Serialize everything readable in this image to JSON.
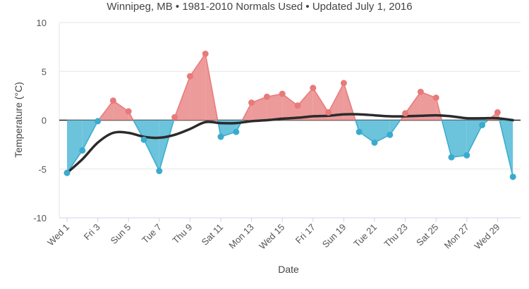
{
  "chart_data": {
    "type": "area",
    "subtitle": "Winnipeg, MB • 1981-2010 Normals Used • Updated July 1, 2016",
    "xlabel": "Date",
    "ylabel": "Temperature (°C)",
    "ylim": [
      -10,
      10
    ],
    "yticks": [
      "10",
      "5",
      "0",
      "-5",
      "-10"
    ],
    "ytick_values": [
      10,
      5,
      0,
      -5,
      -10
    ],
    "days": [
      1,
      2,
      3,
      4,
      5,
      6,
      7,
      8,
      9,
      10,
      11,
      12,
      13,
      14,
      15,
      16,
      17,
      18,
      19,
      20,
      21,
      22,
      23,
      24,
      25,
      26,
      27,
      28,
      29,
      30
    ],
    "xtick_days": [
      1,
      3,
      5,
      7,
      9,
      11,
      13,
      15,
      17,
      19,
      21,
      23,
      25,
      27,
      29
    ],
    "xtick_labels": [
      "Wed 1",
      "Fri 3",
      "Sun 5",
      "Tue 7",
      "Thu 9",
      "Sat 11",
      "Mon 13",
      "Wed 15",
      "Fri 17",
      "Sun 19",
      "Tue 21",
      "Thu 23",
      "Sat 25",
      "Mon 27",
      "Wed 29"
    ],
    "series": [
      {
        "values": [
          -5.4,
          -3.1,
          -0.1,
          2.0,
          0.9,
          -2.0,
          -5.2,
          0.3,
          4.5,
          6.8,
          -1.7,
          -1.2,
          1.8,
          2.4,
          2.7,
          1.5,
          3.3,
          0.8,
          3.8,
          -1.2,
          -2.3,
          -1.5,
          0.7,
          2.9,
          2.3,
          -3.8,
          -3.6,
          -0.5,
          0.8,
          -5.8
        ]
      },
      {
        "values": [
          -5.4,
          -4.0,
          -2.3,
          -1.3,
          -1.3,
          -1.7,
          -1.8,
          -1.5,
          -0.9,
          -0.2,
          -0.3,
          -0.3,
          -0.1,
          0.0,
          0.15,
          0.25,
          0.4,
          0.45,
          0.6,
          0.6,
          0.5,
          0.4,
          0.4,
          0.45,
          0.5,
          0.4,
          0.2,
          0.2,
          0.2,
          0.0
        ]
      }
    ],
    "colors": {
      "above": "#e87a7a",
      "above_fill": "#ec9a9a",
      "below": "#3aabce",
      "below_fill": "#6cc3dc",
      "trend": "#2b2b2b",
      "zero_line": "#222222",
      "grid": "#e6e6e6"
    },
    "grid": true,
    "legend": "none"
  }
}
